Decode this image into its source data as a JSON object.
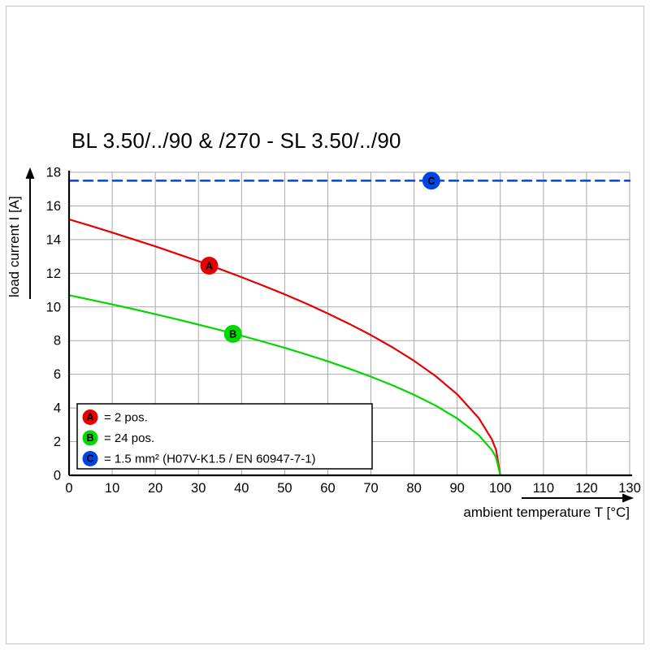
{
  "page": {
    "frame_color": "#c4c4c4"
  },
  "chart_data": {
    "type": "line",
    "title": "BL 3.50/../90 & /270 - SL 3.50/../90",
    "xlabel": "ambient temperature T [°C]",
    "ylabel": "load current I [A]",
    "xlim": [
      0,
      130
    ],
    "ylim": [
      0,
      18
    ],
    "xticks": [
      0,
      10,
      20,
      30,
      40,
      50,
      60,
      70,
      80,
      90,
      100,
      110,
      120,
      130
    ],
    "yticks": [
      0,
      2,
      4,
      6,
      8,
      10,
      12,
      14,
      16,
      18
    ],
    "grid": true,
    "legend_position": "lower-left",
    "series": [
      {
        "id": "A",
        "legend_label": "= 2 pos.",
        "color": "#e60000",
        "line_style": "solid",
        "marker": {
          "x": 32.5,
          "y": 12.45
        },
        "points": [
          [
            0,
            15.2
          ],
          [
            5,
            14.82
          ],
          [
            10,
            14.42
          ],
          [
            15,
            14.01
          ],
          [
            20,
            13.6
          ],
          [
            25,
            13.16
          ],
          [
            30,
            12.72
          ],
          [
            35,
            12.25
          ],
          [
            40,
            11.77
          ],
          [
            45,
            11.27
          ],
          [
            50,
            10.75
          ],
          [
            55,
            10.2
          ],
          [
            60,
            9.61
          ],
          [
            65,
            8.99
          ],
          [
            70,
            8.33
          ],
          [
            75,
            7.6
          ],
          [
            80,
            6.8
          ],
          [
            85,
            5.89
          ],
          [
            90,
            4.81
          ],
          [
            95,
            3.4
          ],
          [
            98,
            2.15
          ],
          [
            99,
            1.52
          ],
          [
            100,
            0
          ]
        ]
      },
      {
        "id": "B",
        "legend_label": "= 24 pos.",
        "color": "#00d800",
        "line_style": "solid",
        "marker": {
          "x": 38,
          "y": 8.4
        },
        "points": [
          [
            0,
            10.7
          ],
          [
            5,
            10.43
          ],
          [
            10,
            10.15
          ],
          [
            15,
            9.87
          ],
          [
            20,
            9.57
          ],
          [
            25,
            9.27
          ],
          [
            30,
            8.95
          ],
          [
            35,
            8.63
          ],
          [
            40,
            8.29
          ],
          [
            45,
            7.94
          ],
          [
            50,
            7.57
          ],
          [
            55,
            7.18
          ],
          [
            60,
            6.77
          ],
          [
            65,
            6.33
          ],
          [
            70,
            5.86
          ],
          [
            75,
            5.35
          ],
          [
            80,
            4.78
          ],
          [
            85,
            4.14
          ],
          [
            90,
            3.38
          ],
          [
            95,
            2.39
          ],
          [
            98,
            1.51
          ],
          [
            99,
            1.07
          ],
          [
            100,
            0
          ]
        ]
      },
      {
        "id": "C",
        "legend_label": "= 1.5 mm² (H07V-K1.5 / EN 60947-7-1)",
        "color": "#0045e0",
        "line_style": "dashed",
        "marker": {
          "x": 84,
          "y": 17.5
        },
        "points": [
          [
            0,
            17.5
          ],
          [
            130,
            17.5
          ]
        ]
      }
    ]
  }
}
